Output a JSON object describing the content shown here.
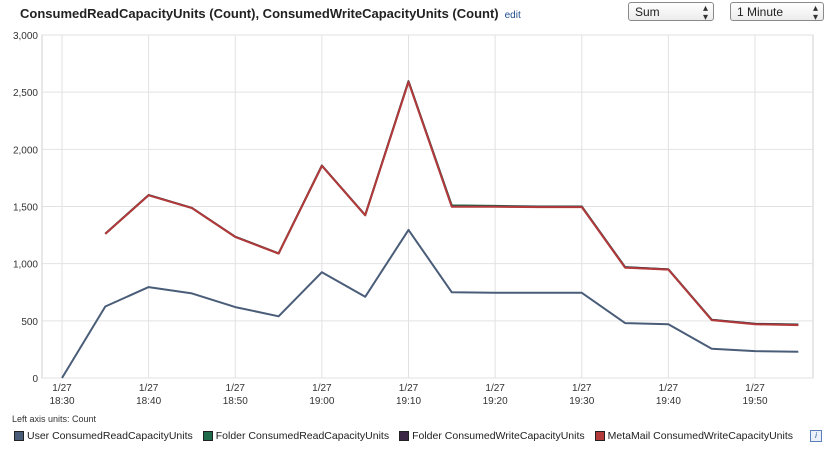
{
  "header": {
    "title": "ConsumedReadCapacityUnits (Count), ConsumedWriteCapacityUnits (Count)",
    "edit_label": "edit",
    "statistic": "Sum",
    "period": "1 Minute"
  },
  "axis_units_label": "Left axis units: Count",
  "legend": {
    "info_icon": "info-icon"
  },
  "chart_data": {
    "type": "line",
    "ylim": [
      0,
      3000
    ],
    "yticks": [
      0,
      500,
      1000,
      1500,
      2000,
      2500,
      3000
    ],
    "ytick_labels": [
      "0",
      "500",
      "1,000",
      "1,500",
      "2,000",
      "2,500",
      "3,000"
    ],
    "x_minutes": [
      0,
      5,
      10,
      15,
      20,
      25,
      30,
      35,
      40,
      45,
      50,
      55,
      60,
      65,
      70,
      75,
      80,
      85
    ],
    "xlim": [
      0,
      89
    ],
    "xticks": [
      0,
      10,
      20,
      30,
      40,
      50,
      60,
      70,
      80
    ],
    "xtick_dates": [
      "1/27",
      "1/27",
      "1/27",
      "1/27",
      "1/27",
      "1/27",
      "1/27",
      "1/27",
      "1/27"
    ],
    "xtick_times": [
      "18:30",
      "18:40",
      "18:50",
      "19:00",
      "19:10",
      "19:20",
      "19:30",
      "19:40",
      "19:50"
    ],
    "grid": true,
    "series": [
      {
        "name": "User ConsumedReadCapacityUnits",
        "color": "#4a5d78",
        "values": [
          0,
          625,
          795,
          740,
          620,
          540,
          925,
          710,
          1295,
          750,
          745,
          745,
          745,
          480,
          470,
          255,
          235,
          230
        ]
      },
      {
        "name": "Folder ConsumedReadCapacityUnits",
        "color": "#1f6b4a",
        "values": [
          null,
          1262,
          1600,
          1488,
          1235,
          1090,
          1858,
          1425,
          2595,
          1510,
          1505,
          1500,
          1500,
          970,
          950,
          510,
          475,
          468
        ]
      },
      {
        "name": "Folder ConsumedWriteCapacityUnits",
        "color": "#3b2645",
        "values": [
          null,
          1262,
          1600,
          1488,
          1235,
          1090,
          1858,
          1425,
          2595,
          1500,
          1500,
          1497,
          1497,
          968,
          950,
          508,
          473,
          465
        ]
      },
      {
        "name": "MetaMail ConsumedWriteCapacityUnits",
        "color": "#b23a3a",
        "values": [
          null,
          1260,
          1598,
          1486,
          1233,
          1088,
          1855,
          1423,
          2590,
          1497,
          1497,
          1495,
          1495,
          965,
          948,
          506,
          470,
          463
        ]
      }
    ]
  }
}
